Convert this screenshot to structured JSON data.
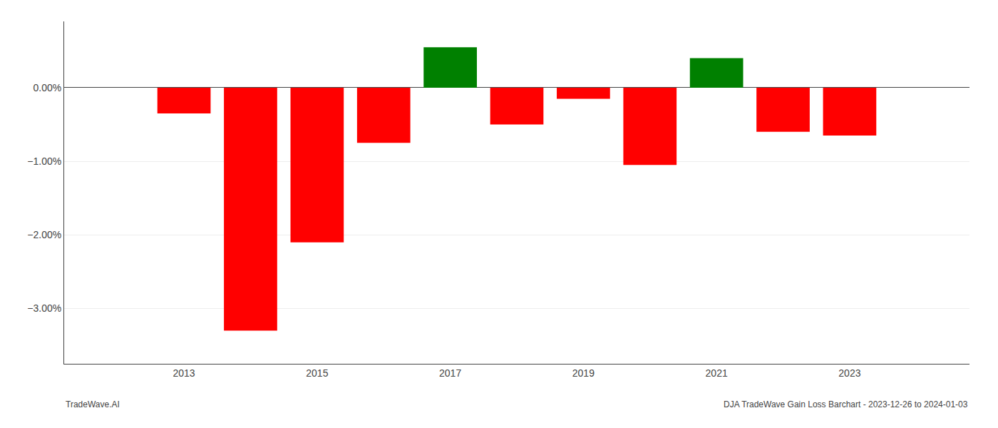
{
  "chart_data": {
    "type": "bar",
    "x": [
      2013,
      2014,
      2015,
      2016,
      2017,
      2018,
      2019,
      2020,
      2021,
      2022,
      2023
    ],
    "values": [
      -0.35,
      -3.3,
      -2.1,
      -0.75,
      0.55,
      -0.5,
      -0.15,
      -1.05,
      0.4,
      -0.6,
      -0.65
    ],
    "colors": [
      "#ff0000",
      "#ff0000",
      "#ff0000",
      "#ff0000",
      "#008000",
      "#ff0000",
      "#ff0000",
      "#ff0000",
      "#008000",
      "#ff0000",
      "#ff0000"
    ],
    "xlim": [
      2011.2,
      2024.8
    ],
    "xticks": [
      2013,
      2015,
      2017,
      2019,
      2021,
      2023
    ],
    "ylim": [
      -3.75,
      0.9
    ],
    "yticks": [
      {
        "value": 0.0,
        "label": "0.00%"
      },
      {
        "value": -1.0,
        "label": "−1.00%"
      },
      {
        "value": -2.0,
        "label": "−2.00%"
      },
      {
        "value": -3.0,
        "label": "−3.00%"
      }
    ],
    "grid": "y",
    "annotations": [
      "TradeWave.AI",
      "DJA TradeWave Gain Loss Barchart - 2023-12-26 to 2024-01-03"
    ]
  }
}
